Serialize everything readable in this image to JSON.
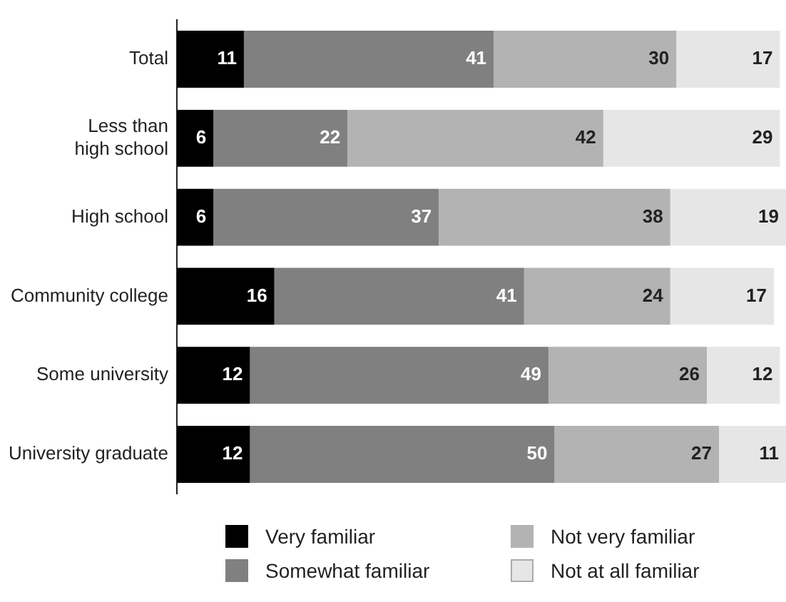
{
  "chart_data": {
    "type": "bar",
    "orientation": "horizontal",
    "stacked": true,
    "data_labels": true,
    "legend": "bottom",
    "grid": false,
    "xlim": [
      0,
      100
    ],
    "tick_labels": "y",
    "categories": [
      "Total",
      "Less than high school",
      "High school",
      "Community college",
      "Some university",
      "University graduate"
    ],
    "series": [
      {
        "name": "Very familiar",
        "color": "#000000",
        "values": [
          11,
          6,
          6,
          16,
          12,
          12
        ]
      },
      {
        "name": "Somewhat familiar",
        "color": "#808080",
        "values": [
          41,
          22,
          37,
          41,
          49,
          50
        ]
      },
      {
        "name": "Not very familiar",
        "color": "#b3b3b3",
        "values": [
          30,
          42,
          38,
          24,
          26,
          27
        ]
      },
      {
        "name": "Not at all familiar",
        "color": "#e6e6e6",
        "values": [
          17,
          29,
          19,
          17,
          12,
          11
        ]
      }
    ]
  }
}
